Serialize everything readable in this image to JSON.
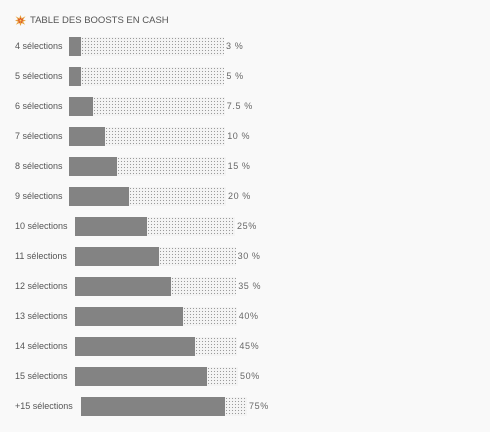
{
  "header": {
    "title": "TABLE DES BOOSTS EN CASH",
    "icon": "boom-icon"
  },
  "rows": [
    {
      "label": "4 sélections",
      "pct_label": "3 %",
      "value": 3
    },
    {
      "label": "5 sélections",
      "pct_label": "5 %",
      "value": 5
    },
    {
      "label": "6 sélections",
      "pct_label": "7.5 %",
      "value": 7.5
    },
    {
      "label": "7 sélections",
      "pct_label": "10 %",
      "value": 10
    },
    {
      "label": "8 sélections",
      "pct_label": "15 %",
      "value": 15
    },
    {
      "label": "9 sélections",
      "pct_label": "20 %",
      "value": 20
    },
    {
      "label": "10 sélections",
      "pct_label": "25%",
      "value": 25
    },
    {
      "label": "11 sélections",
      "pct_label": "30 %",
      "value": 30
    },
    {
      "label": "12 sélections",
      "pct_label": "35 %",
      "value": 35
    },
    {
      "label": "13 sélections",
      "pct_label": "40%",
      "value": 40
    },
    {
      "label": "14 sélections",
      "pct_label": "45%",
      "value": 45
    },
    {
      "label": "15 sélections",
      "pct_label": "50%",
      "value": 50
    },
    {
      "label": "+15 sélections",
      "pct_label": "75%",
      "value": 75
    }
  ],
  "colors": {
    "fill": "#8e8e8e",
    "track": "#f4f4f4",
    "background": "#f9f9f9"
  }
}
